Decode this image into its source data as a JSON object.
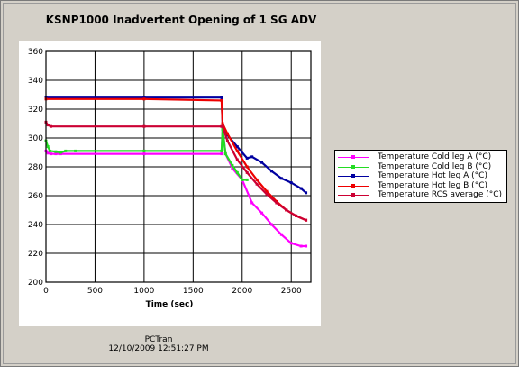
{
  "window": {
    "title": "KSNP1000 Inadvertent Opening of 1 SG ADV"
  },
  "footer": {
    "source": "PCTran",
    "timestamp": "12/10/2009 12:51:27 PM"
  },
  "chart_data": {
    "type": "line",
    "title": "KSNP1000 Inadvertent Opening of 1 SG ADV",
    "xlabel": "Time (sec)",
    "ylabel": "",
    "xlim": [
      0,
      2700
    ],
    "ylim": [
      200,
      360
    ],
    "xticks": [
      0,
      500,
      1000,
      1500,
      2000,
      2500
    ],
    "xtick_labels": [
      "0",
      "500",
      "1000",
      "1500",
      "2000",
      "2500"
    ],
    "yticks": [
      200,
      220,
      240,
      260,
      280,
      300,
      320,
      340,
      360
    ],
    "ytick_labels": [
      "200",
      "220",
      "240",
      "260",
      "280",
      "300",
      "320",
      "340",
      "360"
    ],
    "grid": true,
    "legend_position": "right",
    "series": [
      {
        "name": "Temperature Cold leg A (°C)",
        "color": "#ff00ff",
        "x": [
          0,
          20,
          50,
          100,
          150,
          1000,
          1790,
          1800,
          1830,
          1900,
          2000,
          2100,
          2200,
          2300,
          2400,
          2500,
          2600,
          2650
        ],
        "y": [
          291,
          289.5,
          289,
          289,
          289,
          289,
          289,
          307,
          289,
          279,
          271,
          255,
          248,
          240,
          233,
          227,
          225,
          225
        ]
      },
      {
        "name": "Temperature Cold leg B (°C)",
        "color": "#22dd22",
        "x": [
          0,
          20,
          40,
          100,
          150,
          200,
          300,
          1000,
          1790,
          1800,
          1830,
          1900,
          1950,
          2000,
          2050
        ],
        "y": [
          298,
          294,
          291,
          290.5,
          290,
          291,
          291,
          291,
          291,
          306,
          289,
          281,
          276,
          271,
          271
        ]
      },
      {
        "name": "Temperature Hot leg A (°C)",
        "color": "#0000a0",
        "x": [
          0,
          1000,
          1790,
          1800,
          1850,
          1950,
          2050,
          2100,
          2200,
          2300,
          2400,
          2500,
          2600,
          2650
        ],
        "y": [
          328,
          328,
          328,
          310,
          302,
          294,
          286,
          287,
          283,
          277,
          272,
          269,
          265,
          262
        ]
      },
      {
        "name": "Temperature Hot leg B (°C)",
        "color": "#ee0000",
        "x": [
          0,
          1000,
          1790,
          1800,
          1850,
          1950,
          2050,
          2150,
          2250,
          2350,
          2450,
          2550,
          2650
        ],
        "y": [
          327,
          327,
          326,
          310,
          303,
          291,
          280,
          271,
          263,
          256,
          250,
          246,
          243
        ]
      },
      {
        "name": "Temperature RCS average (°C)",
        "color": "#cc0033",
        "x": [
          0,
          20,
          50,
          1000,
          1790,
          1800,
          1850,
          1950,
          2050,
          2150,
          2250,
          2350,
          2450,
          2550,
          2650
        ],
        "y": [
          311,
          309,
          308,
          308,
          308,
          308,
          298,
          285,
          276,
          268,
          261,
          255,
          250,
          246,
          243
        ]
      }
    ]
  }
}
